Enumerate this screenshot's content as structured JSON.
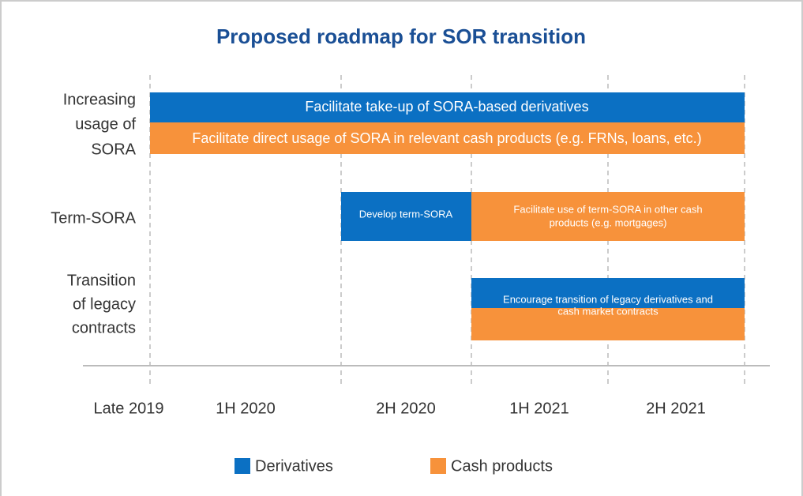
{
  "title": "Proposed roadmap for SOR transition",
  "periods": [
    "Late 2019",
    "1H 2020",
    "2H 2020",
    "1H 2021",
    "2H 2021"
  ],
  "rows": [
    {
      "label": [
        "Increasing",
        "usage of",
        "SORA"
      ],
      "bars": [
        {
          "text": [
            "Facilitate take-up of SORA-based derivatives"
          ]
        },
        {
          "text": [
            "Facilitate direct usage of SORA in relevant cash products (e.g. FRNs, loans, etc.)"
          ]
        }
      ]
    },
    {
      "label": [
        "Term-SORA"
      ],
      "bars": [
        {
          "text": [
            "Develop term-SORA"
          ]
        },
        {
          "text": [
            "Facilitate use of term-SORA in other cash",
            "products (e.g. mortgages)"
          ]
        }
      ]
    },
    {
      "label": [
        "Transition",
        "of legacy",
        "contracts"
      ],
      "bars": [
        {
          "text": [
            "Encourage transition of legacy derivatives and",
            "cash market contracts"
          ]
        }
      ]
    }
  ],
  "legend": [
    {
      "name": "Derivatives",
      "color": "#0b70c3"
    },
    {
      "name": "Cash products",
      "color": "#f7923b"
    }
  ]
}
